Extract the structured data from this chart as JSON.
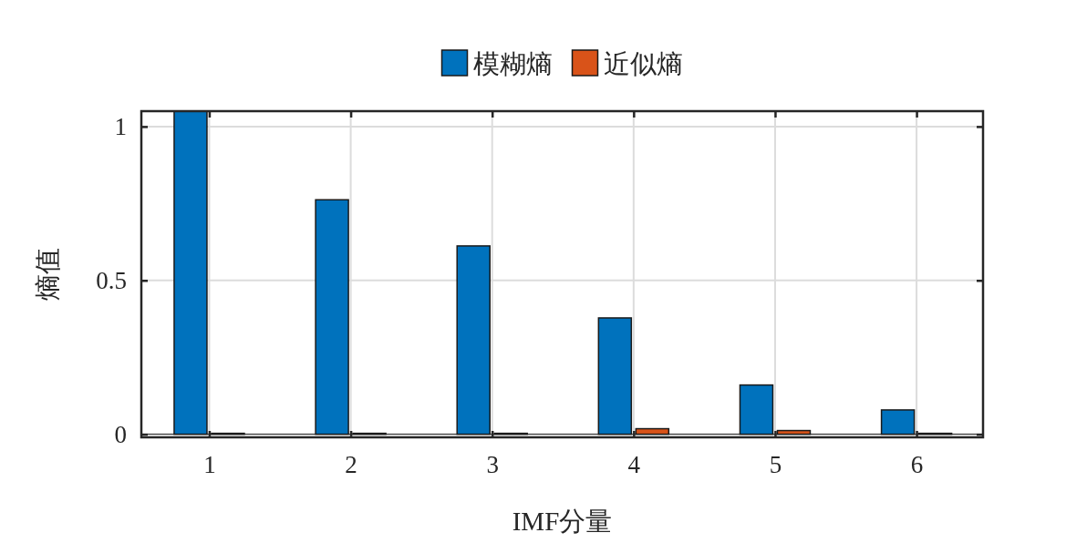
{
  "chart_data": {
    "type": "bar",
    "xlabel": "IMF分量",
    "ylabel": "熵值",
    "categories": [
      "1",
      "2",
      "3",
      "4",
      "5",
      "6"
    ],
    "series": [
      {
        "name": "模糊熵",
        "color": "#0072bd",
        "values": [
          1.05,
          0.762,
          0.612,
          0.378,
          0.16,
          0.079
        ]
      },
      {
        "name": "近似熵",
        "color": "#d95319",
        "values": [
          0.003,
          0.003,
          0.003,
          0.018,
          0.012,
          0.003
        ]
      }
    ],
    "ylim": [
      -0.01,
      1.05
    ],
    "yticks": [
      0,
      0.5,
      1
    ],
    "grid": true,
    "legend": "top"
  }
}
